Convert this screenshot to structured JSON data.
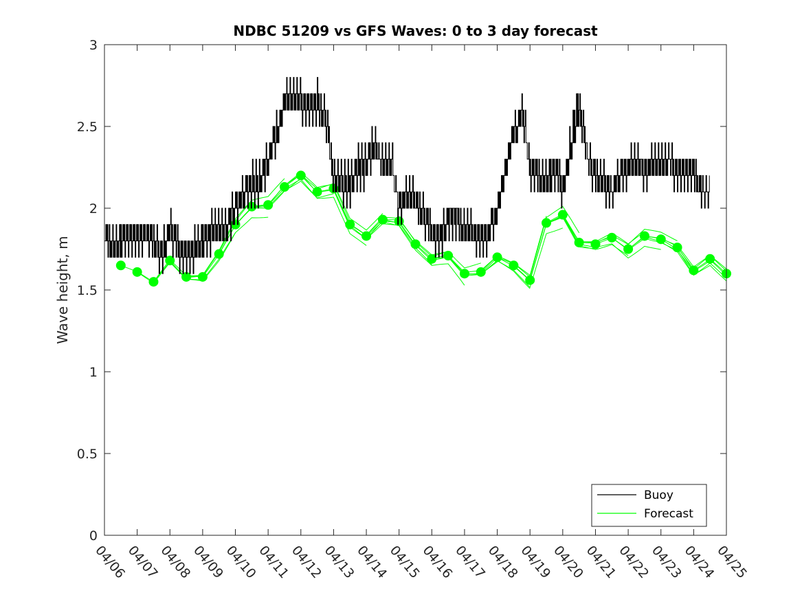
{
  "chart_data": {
    "type": "line",
    "title": "NDBC 51209 vs GFS Waves: 0 to 3 day forecast",
    "xlabel": "",
    "ylabel": "Wave height, m",
    "xlim": [
      0,
      19
    ],
    "ylim": [
      0,
      3
    ],
    "grid": false,
    "legend_position": "bottom-right",
    "x_tick_labels": [
      "04/06",
      "04/07",
      "04/08",
      "04/09",
      "04/10",
      "04/11",
      "04/12",
      "04/13",
      "04/14",
      "04/15",
      "04/16",
      "04/17",
      "04/18",
      "04/19",
      "04/20",
      "04/21",
      "04/22",
      "04/23",
      "04/24",
      "04/25"
    ],
    "y_ticks": [
      0,
      0.5,
      1,
      1.5,
      2,
      2.5,
      3
    ],
    "y_tick_labels": [
      "0",
      "0.5",
      "1",
      "1.5",
      "2",
      "2.5",
      "3"
    ],
    "x_units": "days since 04/06",
    "colors": {
      "buoy": "#000000",
      "forecast": "#00ff00",
      "axes": "#262626"
    },
    "series": [
      {
        "name": "Buoy",
        "x": [
          0.0,
          0.25,
          0.5,
          0.75,
          1.0,
          1.25,
          1.5,
          1.75,
          2.0,
          2.25,
          2.5,
          2.75,
          3.0,
          3.25,
          3.5,
          3.75,
          4.0,
          4.25,
          4.5,
          4.75,
          5.0,
          5.25,
          5.5,
          5.75,
          6.0,
          6.25,
          6.5,
          6.75,
          7.0,
          7.25,
          7.5,
          7.75,
          8.0,
          8.25,
          8.5,
          8.75,
          9.0,
          9.25,
          9.5,
          9.75,
          10.0,
          10.25,
          10.5,
          10.75,
          11.0,
          11.25,
          11.5,
          11.75,
          12.0,
          12.25,
          12.5,
          12.75,
          13.0,
          13.25,
          13.5,
          13.75,
          14.0,
          14.25,
          14.5,
          14.75,
          15.0,
          15.25,
          15.5,
          15.75,
          16.0,
          16.25,
          16.5,
          16.75,
          17.0,
          17.25,
          17.5,
          17.75,
          18.0,
          18.25
        ],
        "values": [
          1.85,
          1.75,
          1.8,
          1.8,
          1.8,
          1.85,
          1.8,
          1.7,
          1.9,
          1.75,
          1.7,
          1.75,
          1.8,
          1.85,
          1.85,
          1.9,
          2.0,
          2.1,
          2.15,
          2.15,
          2.3,
          2.45,
          2.65,
          2.7,
          2.65,
          2.6,
          2.65,
          2.55,
          2.2,
          2.15,
          2.15,
          2.25,
          2.25,
          2.4,
          2.25,
          2.3,
          2.0,
          2.1,
          2.05,
          1.95,
          1.85,
          1.8,
          1.95,
          1.95,
          1.85,
          1.85,
          1.8,
          1.85,
          2.0,
          2.25,
          2.45,
          2.6,
          2.25,
          2.2,
          2.15,
          2.25,
          2.1,
          2.4,
          2.65,
          2.3,
          2.2,
          2.15,
          2.1,
          2.2,
          2.25,
          2.3,
          2.2,
          2.3,
          2.25,
          2.3,
          2.2,
          2.2,
          2.2,
          2.1
        ]
      },
      {
        "name": "Forecast",
        "x": [
          0.5,
          1.0,
          1.5,
          2.0,
          2.5,
          3.0,
          3.5,
          4.0,
          4.5,
          5.0,
          5.5,
          6.0,
          6.5,
          7.0,
          7.5,
          8.0,
          8.5,
          9.0,
          9.5,
          10.0,
          10.5,
          11.0,
          11.5,
          12.0,
          12.5,
          13.0,
          13.5,
          14.0,
          14.5,
          15.0,
          15.5,
          16.0,
          16.5,
          17.0,
          17.5,
          18.0,
          18.5,
          19.0
        ],
        "values": [
          1.65,
          1.61,
          1.55,
          1.68,
          1.58,
          1.58,
          1.72,
          1.9,
          2.01,
          2.02,
          2.13,
          2.2,
          2.1,
          2.12,
          1.9,
          1.83,
          1.93,
          1.92,
          1.78,
          1.69,
          1.71,
          1.6,
          1.61,
          1.7,
          1.65,
          1.56,
          1.91,
          1.96,
          1.79,
          1.78,
          1.82,
          1.75,
          1.83,
          1.81,
          1.76,
          1.62,
          1.69,
          1.6
        ]
      }
    ]
  }
}
